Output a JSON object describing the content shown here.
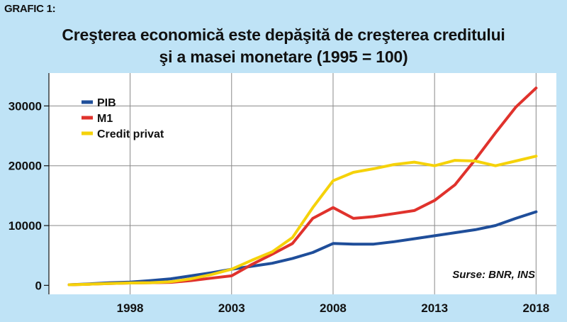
{
  "figure_label": "GRAFIC 1:",
  "chart_data": {
    "type": "line",
    "title_line1": "Creşterea economică este depăşită de creşterea creditului",
    "title_line2": "şi a masei monetare (1995 = 100)",
    "x": [
      1995,
      1996,
      1997,
      1998,
      1999,
      2000,
      2001,
      2002,
      2003,
      2004,
      2005,
      2006,
      2007,
      2008,
      2009,
      2010,
      2011,
      2012,
      2013,
      2014,
      2015,
      2016,
      2017,
      2018
    ],
    "series": [
      {
        "name": "PIB",
        "color": "#1f4e9a",
        "values": [
          100,
          250,
          450,
          550,
          800,
          1100,
          1600,
          2100,
          2700,
          3200,
          3700,
          4500,
          5500,
          7000,
          6900,
          6900,
          7300,
          7800,
          8300,
          8800,
          9300,
          10000,
          11200,
          12300
        ]
      },
      {
        "name": "M1",
        "color": "#e0322c",
        "values": [
          100,
          200,
          300,
          400,
          450,
          500,
          800,
          1200,
          1600,
          3500,
          5200,
          7000,
          11200,
          13000,
          11200,
          11500,
          12000,
          12500,
          14200,
          16800,
          21000,
          25500,
          29800,
          33000
        ]
      },
      {
        "name": "Credit privat",
        "color": "#f5d20a",
        "values": [
          100,
          200,
          300,
          400,
          450,
          600,
          1100,
          1800,
          2700,
          4200,
          5600,
          8000,
          13000,
          17500,
          18900,
          19500,
          20200,
          20600,
          20000,
          20900,
          20800,
          20000,
          20800,
          21600
        ]
      }
    ],
    "x_ticks": [
      "1998",
      "2003",
      "2008",
      "2013",
      "2018"
    ],
    "x_tick_values": [
      1998,
      2003,
      2008,
      2013,
      2018
    ],
    "y_ticks": [
      "0",
      "10000",
      "20000",
      "30000"
    ],
    "y_tick_values": [
      0,
      10000,
      20000,
      30000
    ],
    "xlim": [
      1994,
      2019
    ],
    "ylim": [
      -1500,
      35500
    ],
    "grid": true,
    "legend_position": "top-left",
    "annotation": "Surse: BNR, INS"
  }
}
